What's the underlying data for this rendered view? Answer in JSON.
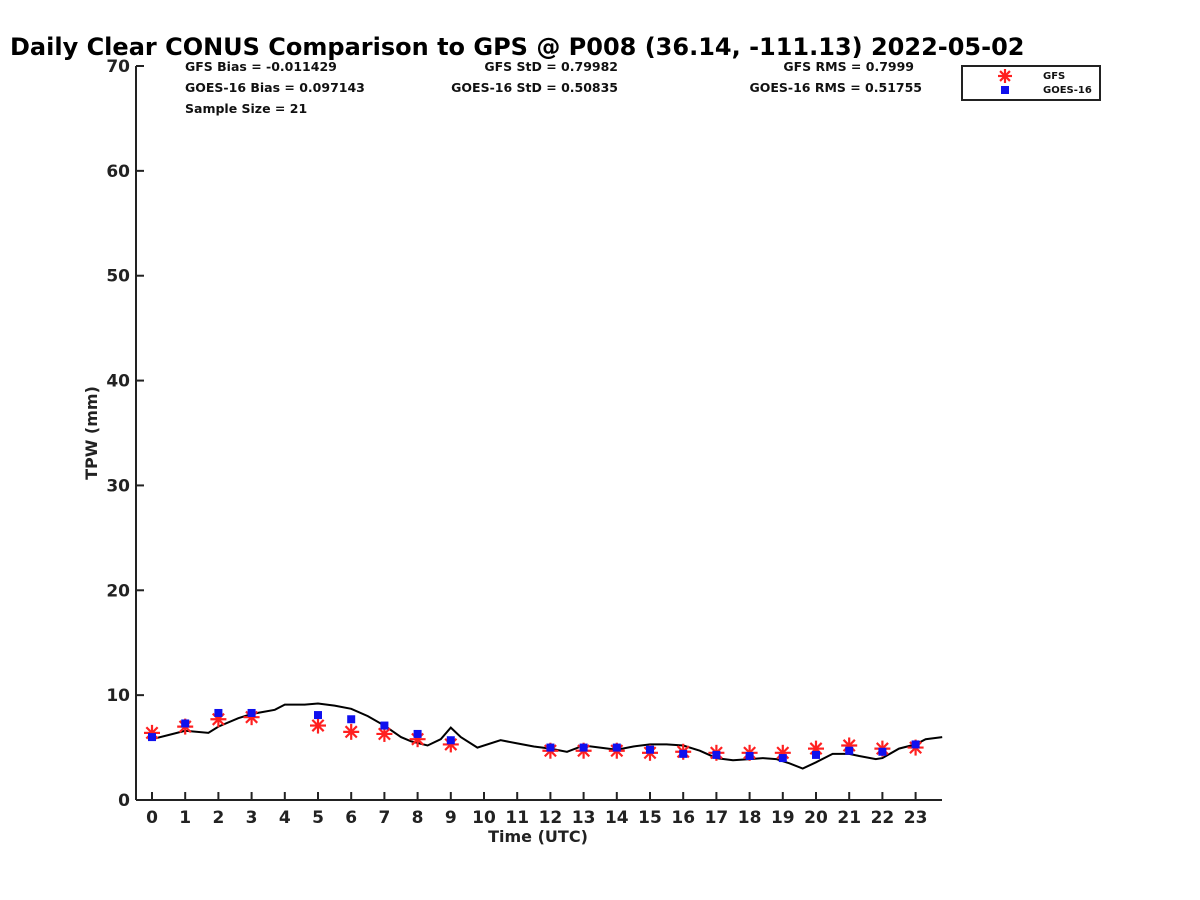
{
  "chart_data": {
    "type": "line",
    "title": "Daily Clear CONUS Comparison to GPS @ P008 (36.14, -111.13) 2022-05-02",
    "xlabel": "Time (UTC)",
    "ylabel": "TPW (mm)",
    "xlim": [
      -0.5,
      23.8
    ],
    "ylim": [
      0,
      70
    ],
    "xticks": [
      "0",
      "1",
      "2",
      "3",
      "4",
      "5",
      "6",
      "7",
      "8",
      "9",
      "10",
      "11",
      "12",
      "13",
      "14",
      "15",
      "16",
      "17",
      "18",
      "19",
      "20",
      "21",
      "22",
      "23"
    ],
    "yticks": [
      "0",
      "10",
      "20",
      "30",
      "40",
      "50",
      "60",
      "70"
    ],
    "stats": {
      "gfs_bias": "GFS Bias = -0.011429",
      "goes_bias": "GOES-16 Bias = 0.097143",
      "sample_size": "Sample Size = 21",
      "gfs_std": "GFS StD = 0.79982",
      "goes_std": "GOES-16 StD = 0.50835",
      "gfs_rms": "GFS RMS = 0.7999",
      "goes_rms": "GOES-16 RMS = 0.51755"
    },
    "legend": {
      "position": "top-right",
      "entries": [
        "GFS",
        "GOES-16"
      ]
    },
    "series": [
      {
        "marker": "line",
        "color": "#000000",
        "x": [
          0,
          0.5,
          1,
          1.7,
          2,
          2.6,
          3,
          3.7,
          4,
          4.6,
          5,
          5.5,
          6,
          6.5,
          7,
          7.5,
          7.8,
          8.3,
          8.7,
          9,
          9.3,
          9.8,
          10.5,
          11,
          11.5,
          12,
          12.5,
          13,
          13.5,
          14,
          14.5,
          15,
          15.5,
          16,
          16.5,
          17,
          17.5,
          18,
          18.4,
          18.8,
          19.2,
          19.6,
          20,
          20.5,
          21,
          21.3,
          21.8,
          22,
          22.5,
          23,
          23.3,
          23.8
        ],
        "y": [
          5.8,
          6.2,
          6.6,
          6.4,
          7.0,
          7.8,
          8.2,
          8.6,
          9.1,
          9.1,
          9.2,
          9.0,
          8.7,
          8.0,
          7.1,
          6.0,
          5.6,
          5.2,
          5.8,
          6.9,
          6.0,
          5.0,
          5.7,
          5.4,
          5.1,
          4.9,
          4.6,
          5.2,
          5.0,
          4.8,
          5.1,
          5.3,
          5.3,
          5.2,
          4.7,
          4.0,
          3.8,
          3.9,
          4.0,
          3.9,
          3.5,
          3.0,
          3.6,
          4.4,
          4.4,
          4.2,
          3.9,
          4.0,
          4.9,
          5.3,
          5.8,
          6.0
        ]
      },
      {
        "name": "GFS",
        "marker": "asterisk",
        "color": "#ff2020",
        "x": [
          0,
          1,
          2,
          3,
          5,
          6,
          7,
          8,
          9,
          12,
          13,
          14,
          15,
          16,
          17,
          18,
          19,
          20,
          21,
          22,
          23
        ],
        "y": [
          6.4,
          7.0,
          7.7,
          7.9,
          7.1,
          6.5,
          6.3,
          5.8,
          5.3,
          4.7,
          4.7,
          4.7,
          4.5,
          4.6,
          4.5,
          4.5,
          4.5,
          4.9,
          5.2,
          4.9,
          5.0
        ]
      },
      {
        "name": "GOES-16",
        "marker": "square",
        "color": "#1010ee",
        "x": [
          0,
          1,
          2,
          3,
          5,
          6,
          7,
          8,
          9,
          12,
          13,
          14,
          15,
          16,
          17,
          18,
          19,
          20,
          21,
          22,
          23
        ],
        "y": [
          6.0,
          7.3,
          8.3,
          8.3,
          8.1,
          7.7,
          7.1,
          6.3,
          5.7,
          5.0,
          5.0,
          5.0,
          4.8,
          4.4,
          4.3,
          4.2,
          4.0,
          4.3,
          4.7,
          4.6,
          5.3
        ]
      }
    ]
  }
}
